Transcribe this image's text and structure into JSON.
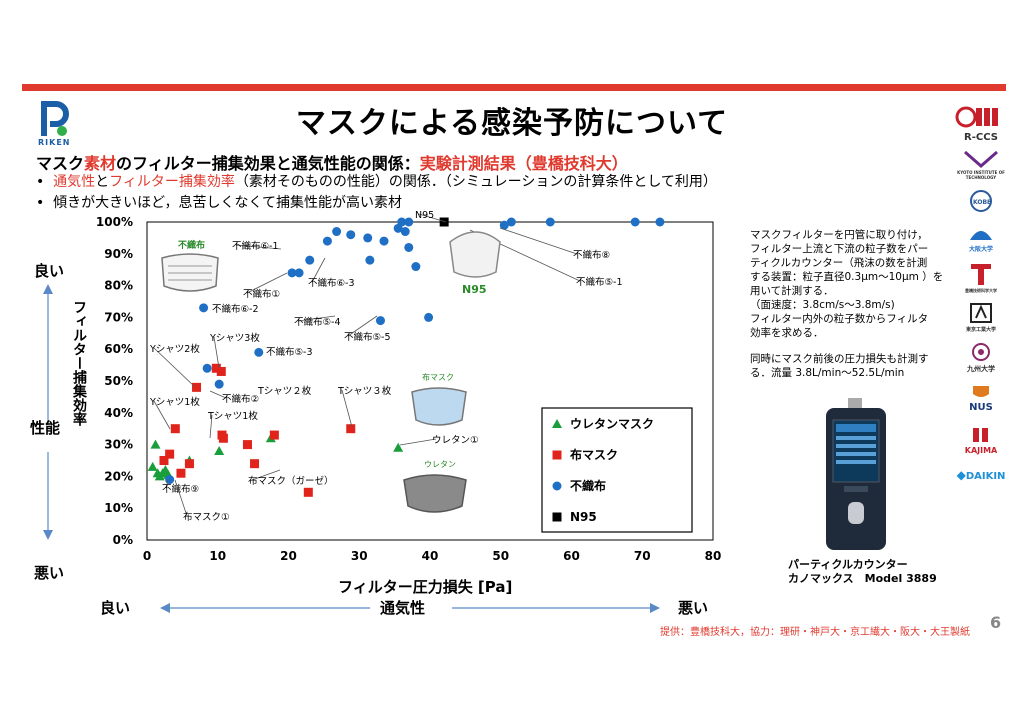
{
  "header": {
    "title": "マスクによる感染予防について",
    "subtitle_parts": [
      "マスク",
      "素材",
      "のフィルター捕集効果と通気性能の関係：",
      "実験計測結果（豊橋技科大）"
    ],
    "bullet1_parts": [
      "通気性",
      "と",
      "フィルター捕集効率",
      "（素材そのものの性能）の関係．（シミュレーションの計算条件として利用）"
    ],
    "bullet2": "傾きが大きいほど，息苦しくなくて捕集性能が高い素材",
    "logo_text": "RIKEN"
  },
  "axis_labels": {
    "good_top": "良い",
    "bad_bottom": "悪い",
    "performance": "性能",
    "y_title": "フィルター捕集効率",
    "x_title": "フィルター圧力損失 [Pa]",
    "good_left": "良い",
    "ventilation": "通気性",
    "bad_right": "悪い"
  },
  "chart_data": {
    "type": "scatter",
    "xlabel": "フィルター圧力損失 [Pa]",
    "ylabel": "フィルター捕集効率",
    "xlim": [
      0,
      80
    ],
    "ylim": [
      0,
      100
    ],
    "x_ticks": [
      "0",
      "10",
      "20",
      "30",
      "40",
      "50",
      "60",
      "70",
      "80"
    ],
    "y_ticks": [
      "0%",
      "10%",
      "20%",
      "30%",
      "40%",
      "50%",
      "60%",
      "70%",
      "80%",
      "90%",
      "100%"
    ],
    "legend": [
      {
        "name": "ウレタンマスク",
        "color": "#1a9e3a",
        "marker": "triangle"
      },
      {
        "name": "布マスク",
        "color": "#e0241b",
        "marker": "square"
      },
      {
        "name": "不織布",
        "color": "#1f6fc5",
        "marker": "circle"
      },
      {
        "name": "N95",
        "color": "#000000",
        "marker": "square"
      }
    ],
    "series": [
      {
        "name": "ウレタンマスク",
        "points": [
          [
            0.8,
            23
          ],
          [
            1.2,
            30
          ],
          [
            1.5,
            21
          ],
          [
            1.8,
            20
          ],
          [
            2.2,
            21
          ],
          [
            2.6,
            22
          ],
          [
            3.0,
            20.5
          ],
          [
            6.0,
            25
          ],
          [
            10.2,
            28
          ],
          [
            17.5,
            32
          ],
          [
            35.5,
            29
          ]
        ]
      },
      {
        "name": "布マスク",
        "points": [
          [
            2.4,
            25
          ],
          [
            3.2,
            27
          ],
          [
            4.0,
            35
          ],
          [
            4.8,
            21
          ],
          [
            6.0,
            24
          ],
          [
            7.0,
            48
          ],
          [
            9.8,
            54
          ],
          [
            10.5,
            53
          ],
          [
            10.6,
            33
          ],
          [
            10.8,
            32
          ],
          [
            14.2,
            30
          ],
          [
            15.2,
            24
          ],
          [
            18.0,
            33
          ],
          [
            22.8,
            15
          ],
          [
            28.8,
            35
          ]
        ]
      },
      {
        "name": "不織布",
        "points": [
          [
            3.2,
            19
          ],
          [
            8.0,
            73
          ],
          [
            8.5,
            54
          ],
          [
            10.2,
            49
          ],
          [
            15.8,
            59
          ],
          [
            20.5,
            84
          ],
          [
            21.5,
            84
          ],
          [
            23.0,
            88
          ],
          [
            25.5,
            94
          ],
          [
            26.8,
            97
          ],
          [
            28.8,
            96
          ],
          [
            31.2,
            95
          ],
          [
            31.5,
            88
          ],
          [
            33.0,
            69
          ],
          [
            33.5,
            94
          ],
          [
            35.5,
            98
          ],
          [
            36.0,
            100
          ],
          [
            36.5,
            97
          ],
          [
            37.0,
            100
          ],
          [
            37.0,
            92
          ],
          [
            38.0,
            86
          ],
          [
            39.8,
            70
          ],
          [
            50.5,
            99
          ],
          [
            51.5,
            100
          ],
          [
            57.0,
            100
          ],
          [
            69.0,
            100
          ],
          [
            72.5,
            100
          ]
        ]
      },
      {
        "name": "N95",
        "points": [
          [
            42.0,
            100
          ]
        ]
      }
    ],
    "annotations": [
      "不織布⑥-1",
      "不織布①",
      "不織布⑥-2",
      "不織布⑥-3",
      "不織布⑤-4",
      "不織布⑤-5",
      "不織布⑤-3",
      "不織布⑧",
      "不織布⑤-1",
      "N95",
      "Yシャツ2枚",
      "Yシャツ3枚",
      "Tシャツ２枚",
      "Tシャツ３枚",
      "Yシャツ1枚",
      "不織布②",
      "Tシャツ1枚",
      "不織布⑨",
      "布マスク（ガーゼ）",
      "布マスク①",
      "ウレタン①"
    ],
    "mask_labels": {
      "nonwoven": "不織布",
      "n95": "N95",
      "cloth": "布マスク",
      "urethane": "ウレタン"
    }
  },
  "note": {
    "lines1": [
      "マスクフィルターを円管に取り付け，",
      "フィルター上流と下流の粒子数をパー",
      "ティクルカウンター（飛沫の数を計測",
      "する装置：粒子直径0.3μm～10μm ）を",
      "用いて計測する．",
      "（面速度：3.8cm/s～3.8m/s)",
      "フィルター内外の粒子数からフィルタ",
      "効率を求める．"
    ],
    "lines2": [
      "同時にマスク前後の圧力損失も計測す",
      "る．流量 3.8L/min～52.5L/min"
    ]
  },
  "device": {
    "caption1": "パーティクルカウンター",
    "caption2": "カノマックス　Model  3889"
  },
  "credit": "提供：豊橋技科大，協力：理研・神戸大・京工繊大・阪大・大王製紙",
  "page_number": "6",
  "sponsor_logos": [
    "R-CCS",
    "KYOTO INSTITUTE OF TECHNOLOGY",
    "KOBE",
    "大阪大学",
    "豊橋技術科学大学",
    "東京工業大学",
    "九州大学",
    "NUS",
    "KAJIMA",
    "DAIKIN"
  ],
  "colors": {
    "accent_red": "#e03a2f",
    "urethane": "#1a9e3a",
    "cloth": "#e0241b",
    "nonwoven": "#1f6fc5"
  }
}
